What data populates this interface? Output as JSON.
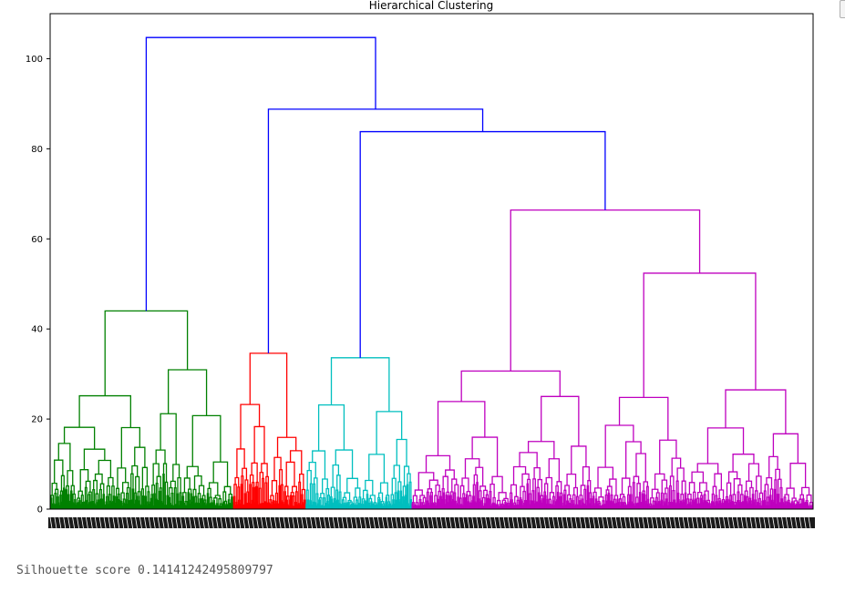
{
  "output": {
    "silhouette_text": "Silhouette score 0.14141242495809797"
  },
  "chart_data": {
    "type": "dendrogram",
    "title": "Hierarchical Clustering",
    "xlabel": "",
    "ylabel": "",
    "ylim": [
      0,
      110
    ],
    "yticks": [
      0,
      20,
      40,
      60,
      80,
      100
    ],
    "leaf_count": 1000,
    "colors": {
      "link_above_threshold": "#0000ff",
      "clusters": [
        "#008000",
        "#ff0000",
        "#00bfbf",
        "#bf00bf"
      ]
    },
    "clusters": [
      {
        "name": "green",
        "color": "#008000",
        "leaf_range": [
          0,
          240
        ],
        "merge_height": 44.0
      },
      {
        "name": "red",
        "color": "#ff0000",
        "leaf_range": [
          240,
          335
        ],
        "merge_height": 34.6
      },
      {
        "name": "cyan",
        "color": "#00bfbf",
        "leaf_range": [
          335,
          474
        ],
        "merge_height": 33.6
      },
      {
        "name": "magenta",
        "color": "#bf00bf",
        "leaf_range": [
          474,
          1000
        ],
        "merge_height": 66.4
      }
    ],
    "top_links": [
      {
        "name": "root",
        "height": 104.7,
        "children": [
          "green",
          "rest"
        ]
      },
      {
        "name": "rest",
        "height": 88.8,
        "children": [
          "red",
          "cyan-magenta"
        ]
      },
      {
        "name": "cyan-magenta",
        "height": 83.8,
        "children": [
          "cyan",
          "magenta"
        ]
      }
    ],
    "silhouette_score": 0.14141242495809797
  }
}
